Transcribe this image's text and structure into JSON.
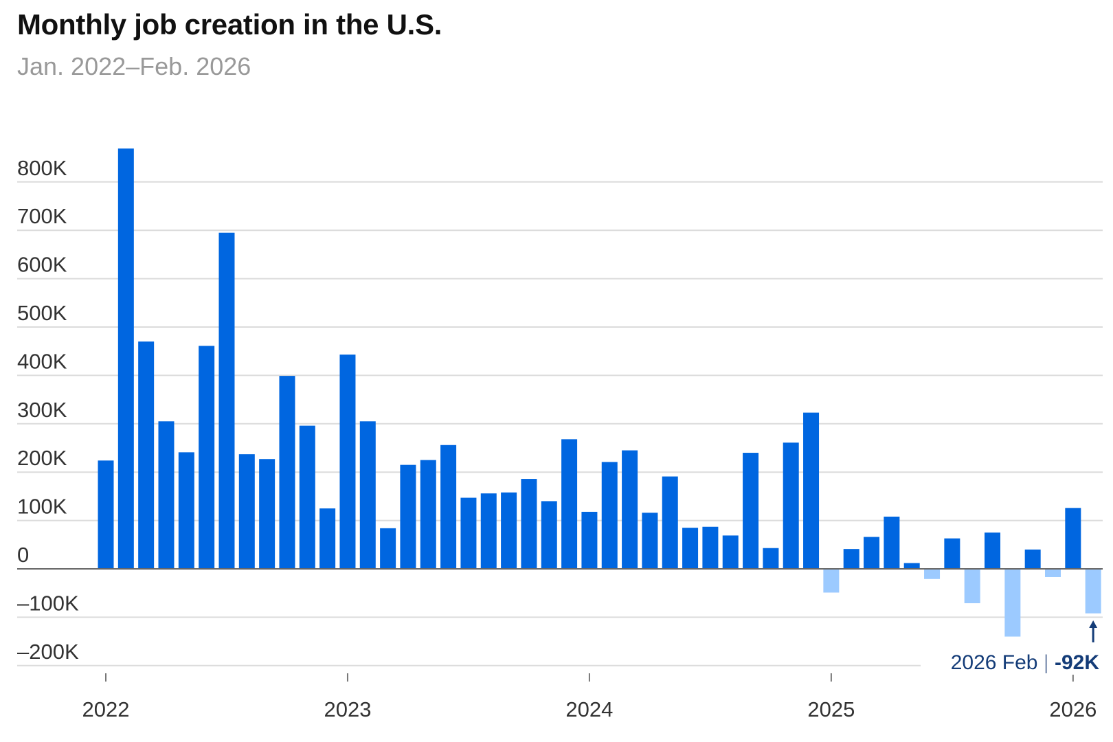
{
  "chart_data": {
    "type": "bar",
    "title": "Monthly job creation in the U.S.",
    "subtitle": "Jan. 2022–Feb. 2026",
    "xlabel": "",
    "ylabel": "",
    "ylim": [
      -200000,
      870000
    ],
    "grid": true,
    "y_ticks": [
      {
        "value": 800000,
        "label": "800K"
      },
      {
        "value": 700000,
        "label": "700K"
      },
      {
        "value": 600000,
        "label": "600K"
      },
      {
        "value": 500000,
        "label": "500K"
      },
      {
        "value": 400000,
        "label": "400K"
      },
      {
        "value": 300000,
        "label": "300K"
      },
      {
        "value": 200000,
        "label": "200K"
      },
      {
        "value": 100000,
        "label": "100K"
      },
      {
        "value": 0,
        "label": "0"
      },
      {
        "value": -100000,
        "label": "–100K"
      },
      {
        "value": -200000,
        "label": "–200K"
      }
    ],
    "x_ticks": [
      {
        "month_index": 0,
        "label": "2022"
      },
      {
        "month_index": 12,
        "label": "2023"
      },
      {
        "month_index": 24,
        "label": "2024"
      },
      {
        "month_index": 36,
        "label": "2025"
      },
      {
        "month_index": 48,
        "label": "2026"
      }
    ],
    "categories": [
      "2022-01",
      "2022-02",
      "2022-03",
      "2022-04",
      "2022-05",
      "2022-06",
      "2022-07",
      "2022-08",
      "2022-09",
      "2022-10",
      "2022-11",
      "2022-12",
      "2023-01",
      "2023-02",
      "2023-03",
      "2023-04",
      "2023-05",
      "2023-06",
      "2023-07",
      "2023-08",
      "2023-09",
      "2023-10",
      "2023-11",
      "2023-12",
      "2024-01",
      "2024-02",
      "2024-03",
      "2024-04",
      "2024-05",
      "2024-06",
      "2024-07",
      "2024-08",
      "2024-09",
      "2024-10",
      "2024-11",
      "2024-12",
      "2025-01",
      "2025-02",
      "2025-03",
      "2025-04",
      "2025-05",
      "2025-06",
      "2025-07",
      "2025-08",
      "2025-09",
      "2025-10",
      "2025-11",
      "2025-12",
      "2026-01",
      "2026-02"
    ],
    "values": [
      224000,
      869000,
      470000,
      305000,
      241000,
      461000,
      695000,
      237000,
      227000,
      399000,
      296000,
      125000,
      443000,
      305000,
      84000,
      215000,
      225000,
      256000,
      147000,
      156000,
      158000,
      186000,
      140000,
      268000,
      118000,
      221000,
      245000,
      116000,
      191000,
      85000,
      87000,
      69000,
      240000,
      43000,
      261000,
      323000,
      -49000,
      41000,
      66000,
      108000,
      12000,
      -21000,
      63000,
      -71000,
      75000,
      -140000,
      40000,
      -17000,
      126000,
      -92000
    ],
    "colors": {
      "positive": "#0066e0",
      "negative": "#9ccaff",
      "annotation": "#143c78"
    },
    "annotation": {
      "period": "2026 Feb",
      "separator": " | ",
      "value": "-92K",
      "arrow_icon": "up-arrow"
    }
  }
}
